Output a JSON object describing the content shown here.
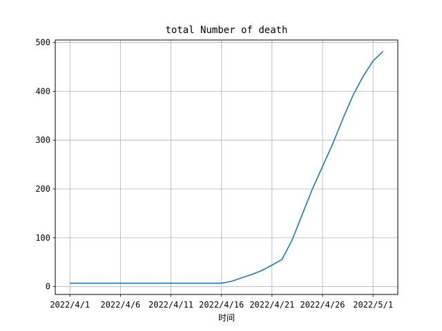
{
  "chart_data": {
    "type": "line",
    "title": "total Number of death",
    "xlabel": "时间",
    "ylabel": "",
    "x": [
      "2022/4/1",
      "2022/4/2",
      "2022/4/3",
      "2022/4/4",
      "2022/4/5",
      "2022/4/6",
      "2022/4/7",
      "2022/4/8",
      "2022/4/9",
      "2022/4/10",
      "2022/4/11",
      "2022/4/12",
      "2022/4/13",
      "2022/4/14",
      "2022/4/15",
      "2022/4/16",
      "2022/4/17",
      "2022/4/18",
      "2022/4/19",
      "2022/4/20",
      "2022/4/21",
      "2022/4/22",
      "2022/4/23",
      "2022/4/24",
      "2022/4/25",
      "2022/4/26",
      "2022/4/27",
      "2022/4/28",
      "2022/4/29",
      "2022/4/30",
      "2022/5/1",
      "2022/5/2"
    ],
    "series": [
      {
        "color": "#1f77b4",
        "values": [
          7,
          7,
          7,
          7,
          7,
          7,
          7,
          7,
          7,
          7,
          7,
          7,
          7,
          7,
          7,
          7,
          11,
          18,
          25,
          33,
          44,
          56,
          96,
          148,
          200,
          246,
          292,
          343,
          391,
          430,
          462,
          482
        ]
      }
    ],
    "xticks": [
      "2022/4/1",
      "2022/4/6",
      "2022/4/11",
      "2022/4/16",
      "2022/4/21",
      "2022/4/26",
      "2022/5/1"
    ],
    "yticks": [
      0,
      100,
      200,
      300,
      400,
      500
    ],
    "ylim": [
      -16,
      505
    ],
    "grid": true
  }
}
